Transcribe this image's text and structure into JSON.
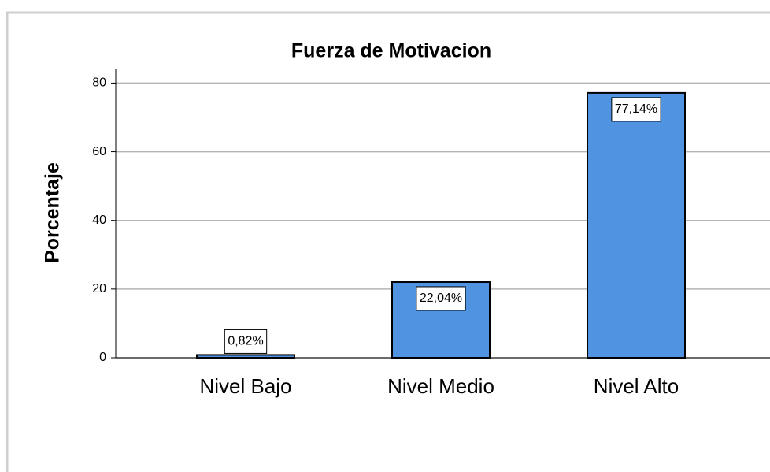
{
  "chart_data": {
    "type": "bar",
    "title": "Fuerza de Motivacion",
    "y_label": "Porcentaje",
    "categories": [
      "Nivel Bajo",
      "Nivel Medio",
      "Nivel Alto"
    ],
    "values": [
      0.82,
      22.04,
      77.14
    ],
    "value_labels": [
      "0,82%",
      "22,04%",
      "77,14%"
    ],
    "color": "#5093e1",
    "ylim": [
      0,
      84
    ],
    "yticks": [
      0,
      20,
      40,
      60,
      80
    ],
    "grid": true
  }
}
